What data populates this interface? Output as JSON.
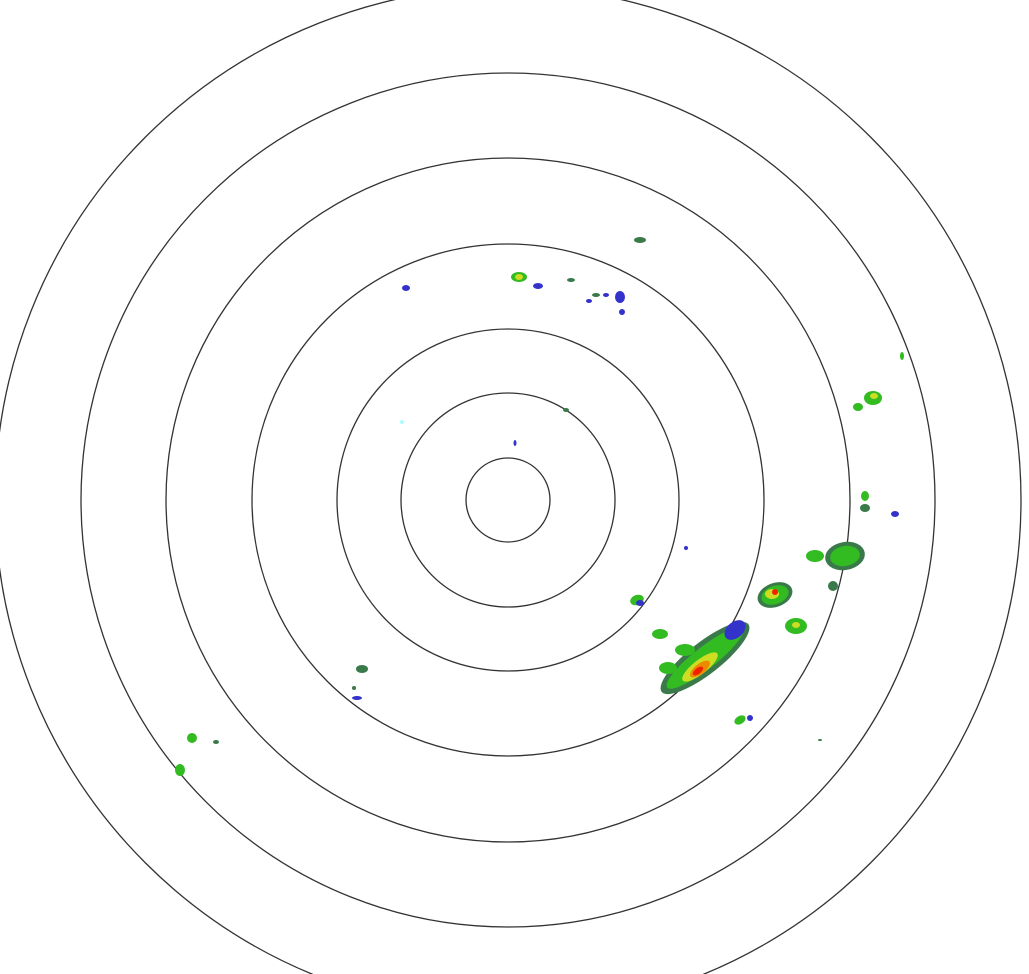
{
  "radar": {
    "range_ring_count": 7,
    "colors": {
      "background": "#ffffff",
      "ring": "#333333",
      "light": "#3333cc",
      "weak": "#3a7a4a",
      "moderate": "#33bb22",
      "heavy": "#ccdd22",
      "intense": "#ee8800",
      "extreme": "#ee2200",
      "clutter": "#aaffff"
    }
  }
}
